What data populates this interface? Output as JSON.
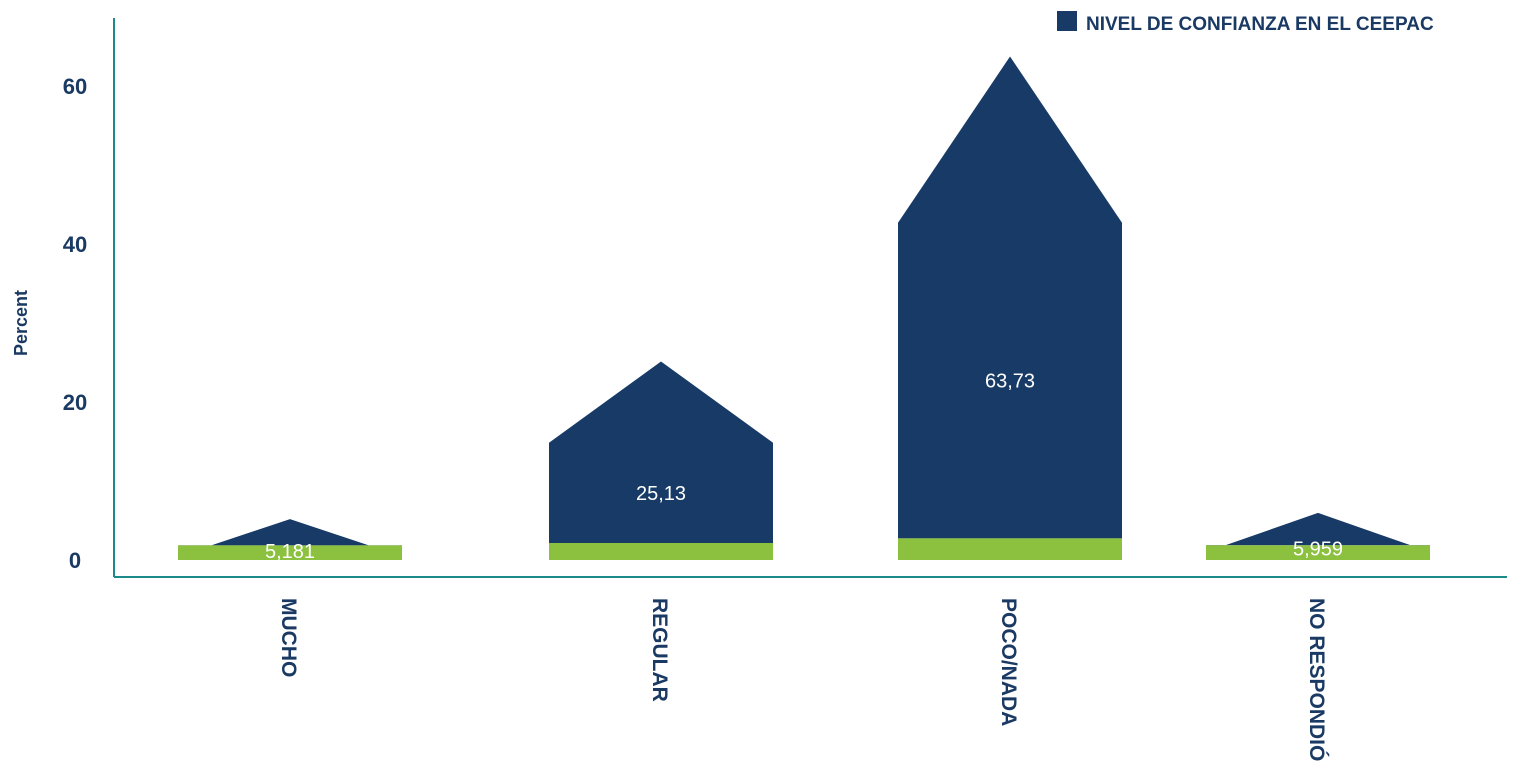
{
  "chart_data": {
    "type": "bar",
    "title": "",
    "xlabel": "",
    "ylabel": "Percent",
    "ylim": [
      0,
      65
    ],
    "yticks": [
      "0",
      "20",
      "40",
      "60"
    ],
    "categories": [
      "MUCHO",
      "REGULAR",
      "POCO/NADA",
      "NO RESPONDIÓ"
    ],
    "series": [
      {
        "name": "NIVEL DE CONFIANZA EN EL CEEPAC",
        "values": [
          5.181,
          25.13,
          63.73,
          5.959
        ],
        "labels": [
          "5,181",
          "25,13",
          "63,73",
          "5,959"
        ]
      }
    ],
    "legend_position": "top-right",
    "colors": {
      "bar": "#173a66",
      "base": "#8cc03f",
      "axis": "#1a8a8a",
      "text": "#1a3a64"
    }
  }
}
